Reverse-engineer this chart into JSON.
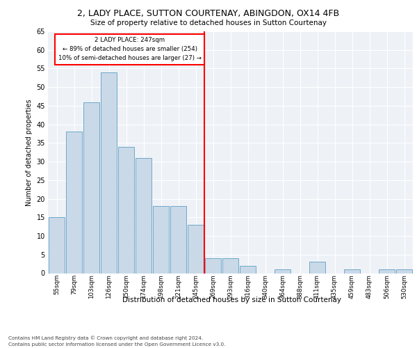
{
  "title_line1": "2, LADY PLACE, SUTTON COURTENAY, ABINGDON, OX14 4FB",
  "title_line2": "Size of property relative to detached houses in Sutton Courtenay",
  "xlabel": "Distribution of detached houses by size in Sutton Courtenay",
  "ylabel": "Number of detached properties",
  "categories": [
    "55sqm",
    "79sqm",
    "103sqm",
    "126sqm",
    "150sqm",
    "174sqm",
    "198sqm",
    "221sqm",
    "245sqm",
    "269sqm",
    "293sqm",
    "316sqm",
    "340sqm",
    "364sqm",
    "388sqm",
    "411sqm",
    "435sqm",
    "459sqm",
    "483sqm",
    "506sqm",
    "530sqm"
  ],
  "values": [
    15,
    38,
    46,
    54,
    34,
    31,
    18,
    18,
    13,
    4,
    4,
    2,
    0,
    1,
    0,
    3,
    0,
    1,
    0,
    1,
    1
  ],
  "bar_color": "#c9d9e8",
  "bar_edge_color": "#6fa8c8",
  "ref_line_x": 8.5,
  "annotation_line1": "2 LADY PLACE: 247sqm",
  "annotation_line2": "← 89% of detached houses are smaller (254)",
  "annotation_line3": "10% of semi-detached houses are larger (27) →",
  "ylim": [
    0,
    65
  ],
  "yticks": [
    0,
    5,
    10,
    15,
    20,
    25,
    30,
    35,
    40,
    45,
    50,
    55,
    60,
    65
  ],
  "background_color": "#eef2f7",
  "grid_color": "#ffffff",
  "footer_line1": "Contains HM Land Registry data © Crown copyright and database right 2024.",
  "footer_line2": "Contains public sector information licensed under the Open Government Licence v3.0."
}
